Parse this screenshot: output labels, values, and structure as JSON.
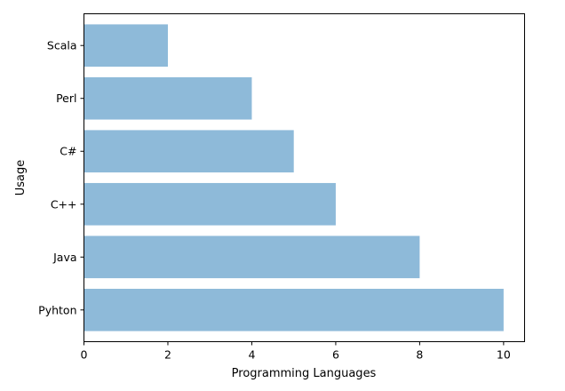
{
  "chart_data": {
    "type": "bar",
    "orientation": "horizontal",
    "categories": [
      "Pyhton",
      "Java",
      "C++",
      "C#",
      "Perl",
      "Scala"
    ],
    "values": [
      10,
      8,
      6,
      5,
      4,
      2
    ],
    "xlabel": "Programming Languages",
    "ylabel": "Usage",
    "xlim": [
      0,
      10.5
    ],
    "xticks": [
      0,
      2,
      4,
      6,
      8,
      10
    ],
    "grid": false,
    "bar_color": "#8ebad9"
  }
}
